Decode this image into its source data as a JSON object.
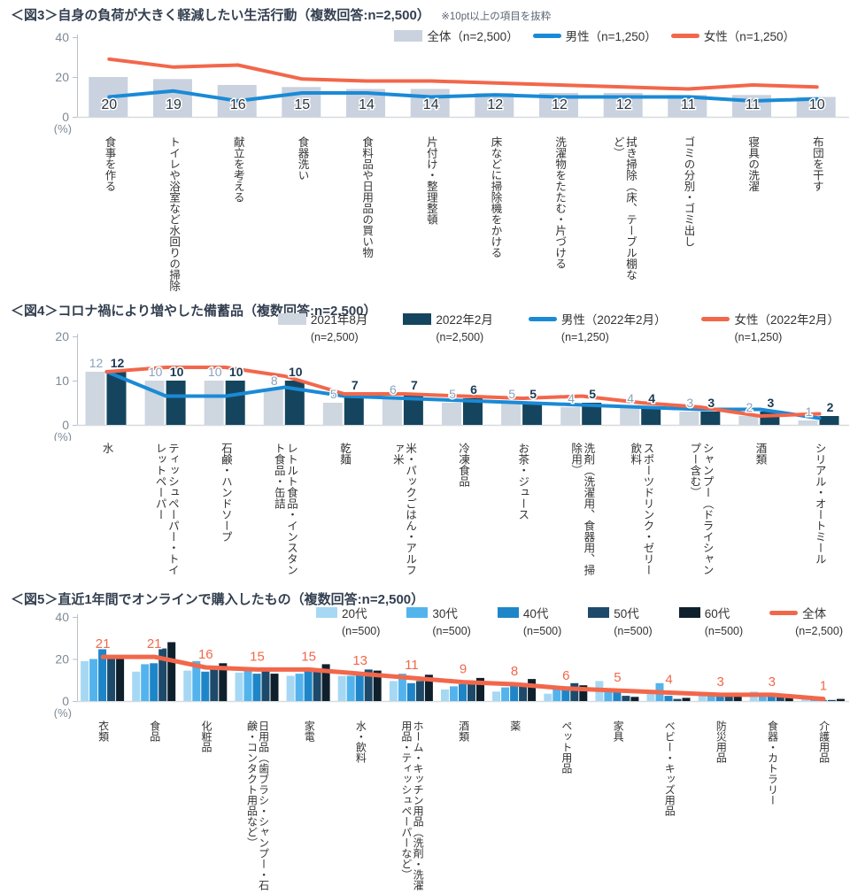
{
  "colors": {
    "axis_text": "#7d8a97",
    "axis_line": "#b9c0c7",
    "baseline": "#d7dbdf",
    "title": "#333f50",
    "male_line": "#1a8ad6",
    "female_line": "#f2674b"
  },
  "chart_data": [
    {
      "id": "fig3",
      "type": "bar",
      "title": "＜図3＞自身の負荷が大きく軽減したい生活行動（複数回答:n=2,500）",
      "note": "※10pt以上の項目を抜粋",
      "unit_label": "(%)",
      "ylim": [
        0,
        40
      ],
      "yticks": [
        0,
        20,
        40
      ],
      "grid": false,
      "legend_position": "top-right",
      "categories": [
        "食事を作る",
        "トイレや浴室など水回りの掃除",
        "献立を考える",
        "食器洗い",
        "食料品や日用品の買い物",
        "片付け・整理整頓",
        "床などに掃除機をかける",
        "洗濯物をたたむ・片づける",
        "拭き掃除（床、テーブル棚など）",
        "ゴミの分別・ゴミ出し",
        "寝具の洗濯",
        "布団を干す"
      ],
      "series": [
        {
          "name": "全体（n=2,500）",
          "kind": "bar",
          "color": "#c9d2de",
          "values": [
            20,
            19,
            16,
            15,
            14,
            14,
            12,
            12,
            12,
            11,
            11,
            10
          ],
          "show_labels": true,
          "label_color": "#2a333e"
        },
        {
          "name": "男性（n=1,250）",
          "kind": "line",
          "color": "#1a8ad6",
          "values": [
            10,
            13,
            8,
            12,
            12,
            10,
            11,
            10,
            10,
            10,
            8,
            9
          ]
        },
        {
          "name": "女性（n=1,250）",
          "kind": "line",
          "color": "#f2674b",
          "values": [
            29,
            25,
            26,
            19,
            18,
            18,
            17,
            16,
            15,
            14,
            16,
            15
          ]
        }
      ]
    },
    {
      "id": "fig4",
      "type": "bar",
      "title": "＜図4＞コロナ禍により増やした備蓄品（複数回答:n=2,500）",
      "unit_label": "(%)",
      "ylim": [
        0,
        20
      ],
      "yticks": [
        0,
        10,
        20
      ],
      "grid": false,
      "legend_position": "top-right",
      "categories": [
        "水",
        "ティッシュペーパー・トイレットペーパー",
        "石鹸・ハンドソープ",
        "レトルト食品・インスタント食品・缶詰",
        "乾麺",
        "米・パックごはん・アルファ米",
        "冷凍食品",
        "お茶・ジュース",
        "洗剤（洗濯用、食器用、掃除用）",
        "スポーツドリンク・ゼリー飲料",
        "シャンプー（ドライシャンプー含む）",
        "酒類",
        "シリアル・オートミール"
      ],
      "series": [
        {
          "name": "2021年8月",
          "sub": "(n=2,500)",
          "kind": "bar",
          "color": "#ced6e0",
          "values": [
            12,
            10,
            10,
            8,
            5,
            6,
            5,
            5,
            4,
            4,
            3,
            2,
            1
          ],
          "show_labels": true,
          "label_color": "#8aa2ba",
          "label_bold": false
        },
        {
          "name": "2022年2月",
          "sub": "(n=2,500)",
          "kind": "bar",
          "color": "#15455e",
          "values": [
            12,
            10,
            10,
            10,
            7,
            7,
            6,
            5,
            5,
            4,
            3,
            3,
            2
          ],
          "show_labels": true,
          "label_color": "#1b3a55",
          "label_bold": true
        },
        {
          "name": "男性（2022年2月）",
          "sub": "(n=1,250)",
          "kind": "line",
          "color": "#1a8ad6",
          "values": [
            12,
            6.5,
            6.5,
            8.5,
            6.5,
            6,
            5.5,
            5,
            4.5,
            4,
            3.5,
            3.5,
            1.5
          ]
        },
        {
          "name": "女性（2022年2月）",
          "sub": "(n=1,250)",
          "kind": "line",
          "color": "#f2674b",
          "values": [
            12,
            13,
            13,
            11,
            7,
            7,
            6.5,
            6,
            6.5,
            5,
            4,
            2,
            2.5
          ]
        }
      ]
    },
    {
      "id": "fig5",
      "type": "bar",
      "title": "＜図5＞直近1年間でオンラインで購入したもの（複数回答:n=2,500）",
      "unit_label": "(%)",
      "ylim": [
        0,
        40
      ],
      "yticks": [
        0,
        20,
        40
      ],
      "grid": false,
      "legend_position": "top-right",
      "categories": [
        "衣類",
        "食品",
        "化粧品",
        "日用品（歯ブラシ・シャンプー・石鹸・コンタクト用品など）",
        "家電",
        "水・飲料",
        "ホーム・キッチン用品（洗剤・洗濯用品・ティッシュペーパーなど）",
        "酒類",
        "薬",
        "ペット用品",
        "家具",
        "ベビー・キッズ用品",
        "防災用品",
        "食器・カトラリー",
        "介護用品"
      ],
      "series": [
        {
          "name": "20代",
          "sub": "(n=500)",
          "kind": "bar",
          "color": "#a6d8f4",
          "values": [
            19,
            14,
            14.5,
            13.5,
            12,
            12,
            9.5,
            5.5,
            4.5,
            3.5,
            9.5,
            5,
            2.5,
            4.5,
            1.5
          ]
        },
        {
          "name": "30代",
          "sub": "(n=500)",
          "kind": "bar",
          "color": "#53b4ed",
          "values": [
            20,
            17.5,
            19,
            16,
            13,
            12,
            13,
            7,
            6.5,
            5.5,
            6,
            8.5,
            3,
            3,
            1.5
          ]
        },
        {
          "name": "40代",
          "sub": "(n=500)",
          "kind": "bar",
          "color": "#1e86c8",
          "values": [
            25,
            18,
            14,
            13,
            15,
            13,
            8.5,
            8,
            8,
            7,
            4.5,
            2.5,
            3,
            2.5,
            0.5
          ]
        },
        {
          "name": "50代",
          "sub": "(n=500)",
          "kind": "bar",
          "color": "#1d4a6a",
          "values": [
            21,
            25,
            15.5,
            15.5,
            15,
            15,
            9.5,
            8,
            8.5,
            8.5,
            2.5,
            1,
            3.5,
            3,
            0.5
          ]
        },
        {
          "name": "60代",
          "sub": "(n=500)",
          "kind": "bar",
          "color": "#0f202d",
          "values": [
            20,
            28,
            18,
            13,
            17.5,
            14.5,
            12.5,
            11,
            10.5,
            7.5,
            2,
            1.5,
            2.5,
            2,
            1
          ]
        },
        {
          "name": "全体",
          "sub": "(n=2,500)",
          "kind": "line",
          "color": "#f2674b",
          "values": [
            21,
            21,
            16,
            15,
            15,
            13,
            11,
            9,
            8,
            6,
            5,
            4,
            3,
            3,
            1
          ],
          "show_labels": true,
          "label_color": "#f2674b"
        }
      ]
    }
  ]
}
